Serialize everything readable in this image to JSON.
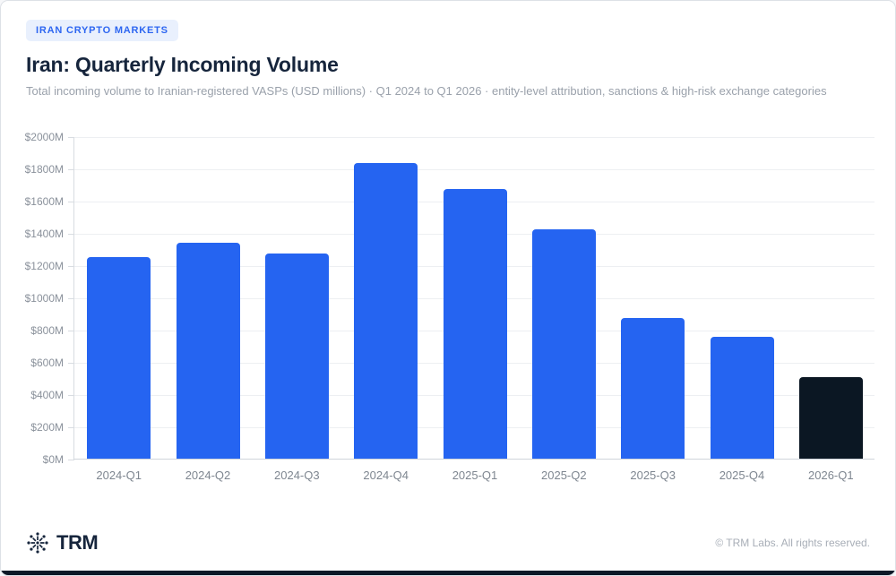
{
  "badge": {
    "label": "IRAN CRYPTO MARKETS"
  },
  "header": {
    "title": "Iran: Quarterly Incoming Volume",
    "subtitle": "Total incoming volume to Iranian-registered VASPs (USD millions) · Q1 2024 to Q1 2026 · entity-level attribution, sanctions & high-risk exchange categories"
  },
  "chart_data": {
    "type": "bar",
    "title": "Iran: Quarterly Incoming Volume",
    "xlabel": "",
    "ylabel": "",
    "unit": "USD millions",
    "categories": [
      "2024-Q1",
      "2024-Q2",
      "2024-Q3",
      "2024-Q4",
      "2025-Q1",
      "2025-Q2",
      "2025-Q3",
      "2025-Q4",
      "2026-Q1"
    ],
    "values": [
      1250,
      1340,
      1275,
      1835,
      1670,
      1420,
      875,
      755,
      505
    ],
    "ylim": [
      0,
      2000
    ],
    "grid": true,
    "legend": "none",
    "highlight_index": 8,
    "yticks": [
      {
        "value": 0,
        "label": "$0M"
      },
      {
        "value": 200,
        "label": "$200M"
      },
      {
        "value": 400,
        "label": "$400M"
      },
      {
        "value": 600,
        "label": "$600M"
      },
      {
        "value": 800,
        "label": "$800M"
      },
      {
        "value": 1000,
        "label": "$1000M"
      },
      {
        "value": 1200,
        "label": "$1200M"
      },
      {
        "value": 1400,
        "label": "$1400M"
      },
      {
        "value": 1600,
        "label": "$1600M"
      },
      {
        "value": 1800,
        "label": "$1800M"
      },
      {
        "value": 2000,
        "label": "$2000M"
      }
    ]
  },
  "colors": {
    "bar_default": "#2564f1",
    "bar_highlight": "#0b1723",
    "badge_bg": "#e9f0fd",
    "badge_text": "#2d66f1",
    "accent_bar": "#0c1927"
  },
  "footer": {
    "logo_text": "TRM",
    "logo_icon": "snowflake-icon",
    "copyright": "© TRM Labs. All rights reserved."
  }
}
